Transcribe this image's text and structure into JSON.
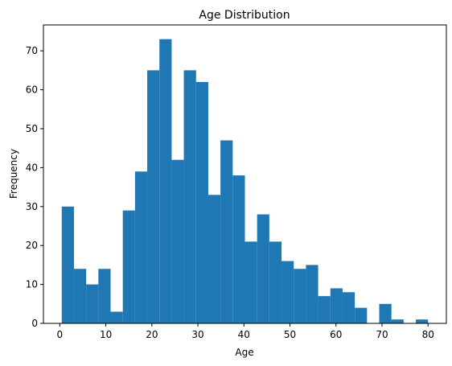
{
  "chart_data": {
    "type": "bar",
    "title": "Age Distribution",
    "xlabel": "Age",
    "ylabel": "Frequency",
    "bar_color": "#1f77b4",
    "bin_start": 0.42,
    "bin_end": 80,
    "bins": 30,
    "values": [
      30,
      14,
      10,
      14,
      3,
      29,
      39,
      65,
      73,
      42,
      65,
      62,
      33,
      47,
      38,
      21,
      28,
      21,
      16,
      14,
      15,
      7,
      9,
      8,
      4,
      0,
      5,
      1,
      0,
      1
    ],
    "xlim": [
      -3.56,
      83.98
    ],
    "ylim": [
      0,
      76.65
    ],
    "xticks": [
      0,
      10,
      20,
      30,
      40,
      50,
      60,
      70,
      80
    ],
    "yticks": [
      0,
      10,
      20,
      30,
      40,
      50,
      60,
      70
    ],
    "grid": false
  }
}
